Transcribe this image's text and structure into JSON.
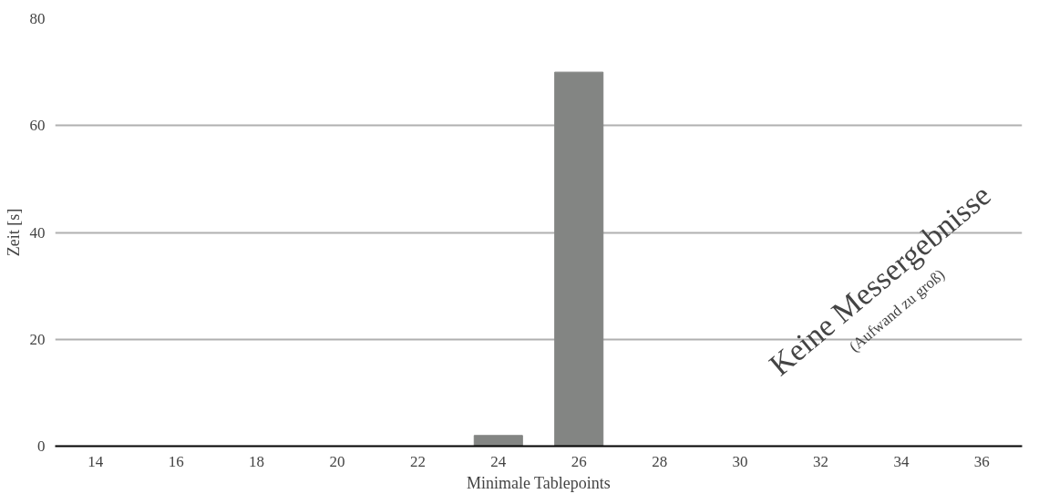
{
  "chart_data": {
    "type": "bar",
    "xlabel": "Minimale Tablepoints",
    "ylabel": "Zeit [s]",
    "categories": [
      "14",
      "16",
      "18",
      "20",
      "22",
      "24",
      "26",
      "28",
      "30",
      "32",
      "34",
      "36"
    ],
    "values": [
      0,
      0,
      0,
      0,
      0,
      2,
      70,
      null,
      null,
      null,
      null,
      null
    ],
    "color": "#838583",
    "ylim": [
      0,
      80
    ],
    "yticks": [
      0,
      20,
      40,
      60,
      80
    ],
    "grid": "y",
    "annotations": [
      "Keine Messergebnisse",
      "(Aufwand zu groß)"
    ]
  }
}
